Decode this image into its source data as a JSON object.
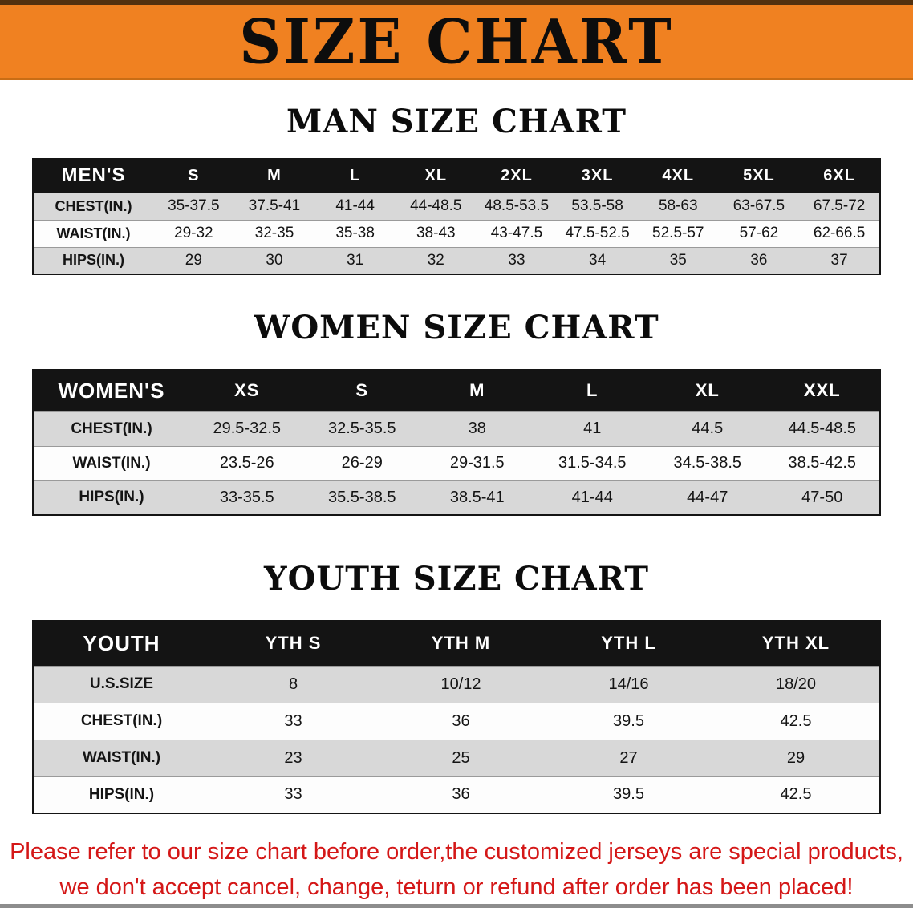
{
  "banner": {
    "title": "SIZE CHART"
  },
  "sections": {
    "men": {
      "heading": "MAN SIZE CHART"
    },
    "women": {
      "heading": "WOMEN SIZE CHART"
    },
    "youth": {
      "heading": "YOUTH SIZE CHART"
    }
  },
  "tables": {
    "men": {
      "header": [
        "MEN'S",
        "S",
        "M",
        "L",
        "XL",
        "2XL",
        "3XL",
        "4XL",
        "5XL",
        "6XL"
      ],
      "rows": [
        [
          "CHEST(IN.)",
          "35-37.5",
          "37.5-41",
          "41-44",
          "44-48.5",
          "48.5-53.5",
          "53.5-58",
          "58-63",
          "63-67.5",
          "67.5-72"
        ],
        [
          "WAIST(IN.)",
          "29-32",
          "32-35",
          "35-38",
          "38-43",
          "43-47.5",
          "47.5-52.5",
          "52.5-57",
          "57-62",
          "62-66.5"
        ],
        [
          "HIPS(IN.)",
          "29",
          "30",
          "31",
          "32",
          "33",
          "34",
          "35",
          "36",
          "37"
        ]
      ]
    },
    "women": {
      "header": [
        "WOMEN'S",
        "XS",
        "S",
        "M",
        "L",
        "XL",
        "XXL"
      ],
      "rows": [
        [
          "CHEST(IN.)",
          "29.5-32.5",
          "32.5-35.5",
          "38",
          "41",
          "44.5",
          "44.5-48.5"
        ],
        [
          "WAIST(IN.)",
          "23.5-26",
          "26-29",
          "29-31.5",
          "31.5-34.5",
          "34.5-38.5",
          "38.5-42.5"
        ],
        [
          "HIPS(IN.)",
          "33-35.5",
          "35.5-38.5",
          "38.5-41",
          "41-44",
          "44-47",
          "47-50"
        ]
      ]
    },
    "youth": {
      "header": [
        "YOUTH",
        "YTH S",
        "YTH M",
        "YTH L",
        "YTH XL"
      ],
      "rows": [
        [
          "U.S.SIZE",
          "8",
          "10/12",
          "14/16",
          "18/20"
        ],
        [
          "CHEST(IN.)",
          "33",
          "36",
          "39.5",
          "42.5"
        ],
        [
          "WAIST(IN.)",
          "23",
          "25",
          "27",
          "29"
        ],
        [
          "HIPS(IN.)",
          "33",
          "36",
          "39.5",
          "42.5"
        ]
      ]
    }
  },
  "note": {
    "line1": "Please refer to our size chart before order,the customized jerseys are special products,",
    "line2": "we don't accept cancel, change, teturn or refund after order has been placed!"
  },
  "colors": {
    "banner_bg": "#f08121",
    "banner_text": "#0d0d0d",
    "header_bg": "#141414",
    "header_text": "#ffffff",
    "stripe": "#d8d8d8",
    "border_dark": "#141414",
    "note_red": "#d41717"
  }
}
